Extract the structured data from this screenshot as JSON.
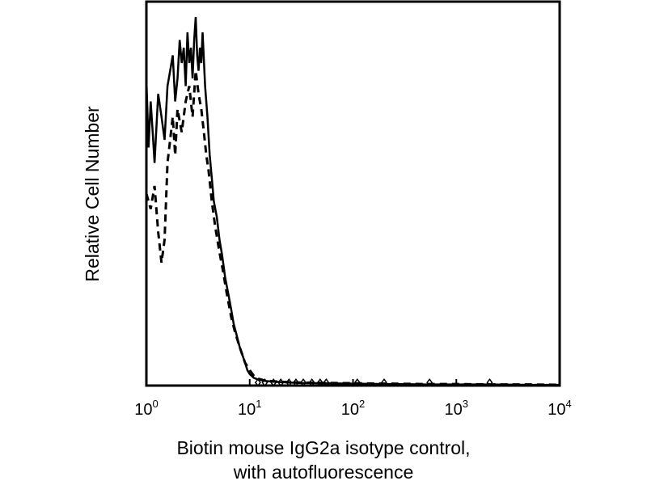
{
  "chart_data": {
    "type": "line",
    "title": "",
    "xlabel": [
      "Biotin mouse IgG2a isotype control,",
      "with autofluorescence"
    ],
    "ylabel": "Relative Cell Number",
    "xscale": "log",
    "xlim": [
      1,
      10000
    ],
    "ylim": [
      0,
      100
    ],
    "x_ticks": [
      {
        "base": "10",
        "exp": "0",
        "value": 1
      },
      {
        "base": "10",
        "exp": "1",
        "value": 10
      },
      {
        "base": "10",
        "exp": "2",
        "value": 100
      },
      {
        "base": "10",
        "exp": "3",
        "value": 1000
      },
      {
        "base": "10",
        "exp": "4",
        "value": 10000
      }
    ],
    "grid": false,
    "legend": "none",
    "series": [
      {
        "style": "solid",
        "color": "#000000",
        "x": [
          1.0,
          1.05,
          1.1,
          1.15,
          1.2,
          1.3,
          1.4,
          1.5,
          1.6,
          1.7,
          1.8,
          1.9,
          2.0,
          2.1,
          2.2,
          2.3,
          2.4,
          2.5,
          2.6,
          2.7,
          2.8,
          2.9,
          3.0,
          3.1,
          3.2,
          3.3,
          3.4,
          3.5,
          3.7,
          3.9,
          4.1,
          4.3,
          4.5,
          4.8,
          5.1,
          5.4,
          5.8,
          6.2,
          6.6,
          7.0,
          7.5,
          8.0,
          8.5,
          9.0,
          9.5,
          10.0,
          11.0,
          12.0,
          14.0,
          17.0,
          20.0,
          30.0,
          50.0,
          100.0,
          200.0,
          500.0,
          1000.0,
          2000.0,
          5000.0,
          10000.0
        ],
        "values": [
          80,
          62,
          74,
          66,
          58,
          76,
          70,
          64,
          78,
          82,
          86,
          74,
          80,
          90,
          84,
          88,
          78,
          92,
          84,
          88,
          80,
          90,
          96,
          86,
          82,
          88,
          84,
          92,
          78,
          70,
          60,
          54,
          48,
          44,
          38,
          34,
          28,
          24,
          20,
          16,
          13,
          10,
          8,
          6,
          4,
          3,
          2,
          1.6,
          1.2,
          1.0,
          0.9,
          0.7,
          0.6,
          0.5,
          0.4,
          0.3,
          0.3,
          0.3,
          0.2,
          0.2
        ]
      },
      {
        "style": "dashed",
        "color": "#000000",
        "x": [
          1.0,
          1.1,
          1.2,
          1.3,
          1.4,
          1.5,
          1.6,
          1.7,
          1.8,
          1.9,
          2.0,
          2.2,
          2.4,
          2.6,
          2.8,
          3.0,
          3.2,
          3.4,
          3.6,
          3.8,
          4.0,
          4.3,
          4.6,
          5.0,
          5.5,
          6.0,
          6.6,
          7.2,
          8.0,
          9.0,
          10.0,
          11.0,
          12.0,
          14.0,
          17.0,
          20.0,
          30.0,
          50.0,
          100.0,
          200.0,
          500.0,
          1000.0,
          2000.0,
          5000.0,
          10000.0
        ],
        "values": [
          50,
          46,
          52,
          40,
          32,
          38,
          58,
          64,
          70,
          60,
          72,
          66,
          74,
          78,
          70,
          82,
          76,
          72,
          66,
          60,
          56,
          48,
          42,
          36,
          30,
          24,
          18,
          14,
          10,
          6,
          4,
          2.5,
          1.8,
          1.3,
          1.1,
          1.0,
          0.8,
          0.7,
          0.6,
          0.5,
          0.4,
          0.4,
          0.3,
          0.3,
          0.2
        ]
      }
    ],
    "markers": {
      "x": [
        12,
        14,
        17,
        20,
        24,
        28,
        33,
        40,
        48,
        55,
        110,
        200,
        550,
        2100
      ],
      "y": [
        0.8,
        0.8,
        0.8,
        0.8,
        0.8,
        0.8,
        0.8,
        0.8,
        0.8,
        0.8,
        0.8,
        0.8,
        0.8,
        0.8
      ]
    }
  }
}
